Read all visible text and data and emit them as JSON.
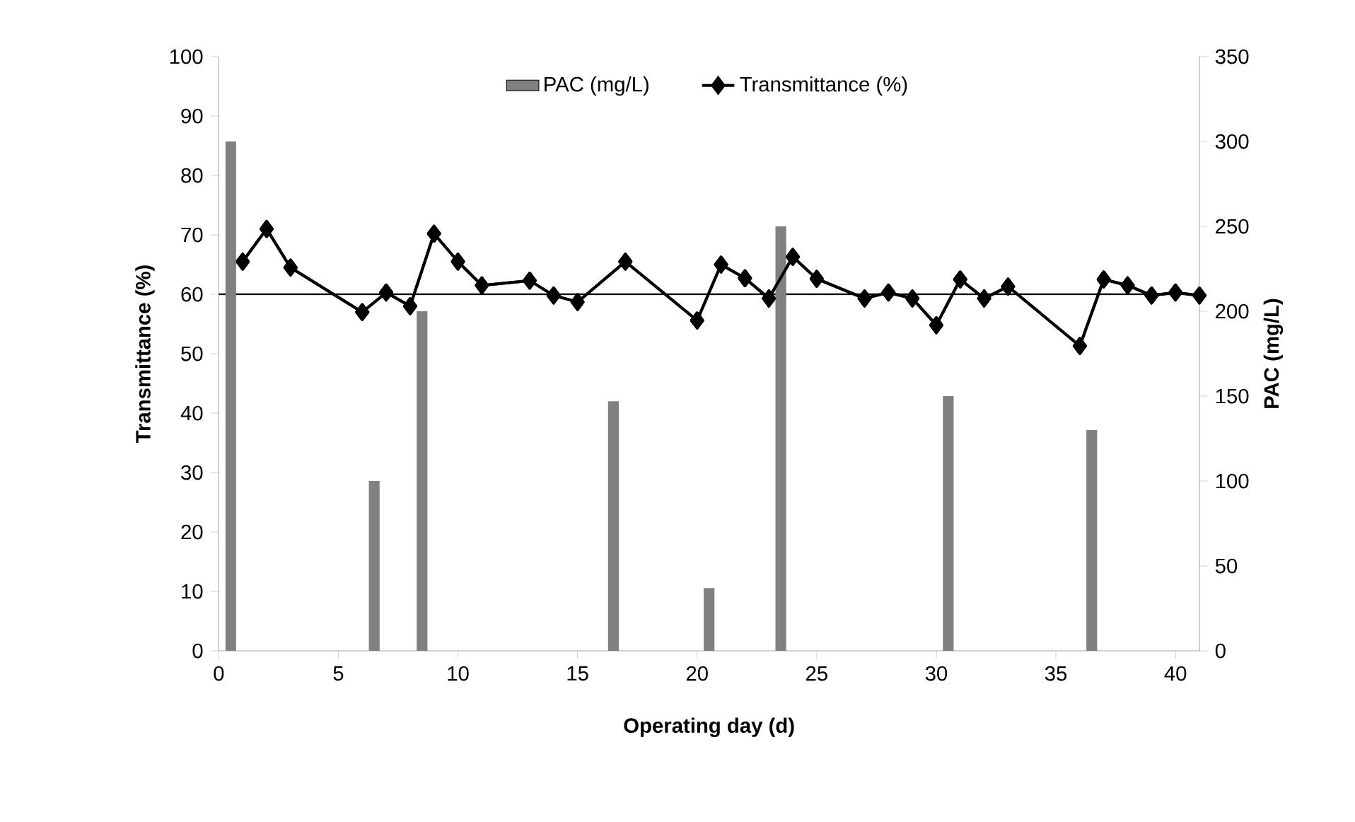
{
  "chart_data": {
    "type": "line",
    "xlabel": "Operating day (d)",
    "ylabel": "Transmittance (%)",
    "y2label": "PAC (mg/L)",
    "xlim": [
      0,
      41
    ],
    "xticks": [
      0,
      5,
      10,
      15,
      20,
      25,
      30,
      35,
      40
    ],
    "ylim": [
      0,
      100
    ],
    "yticks": [
      0,
      10,
      20,
      30,
      40,
      50,
      60,
      70,
      80,
      90,
      100
    ],
    "y2lim": [
      0,
      350
    ],
    "y2ticks": [
      0,
      50,
      100,
      150,
      200,
      250,
      300,
      350
    ],
    "legend": "top",
    "grid": false,
    "ref_lines": [
      {
        "axis": "y",
        "value": 60,
        "color": "#000000"
      }
    ],
    "series": [
      {
        "name": "PAC (mg/L)",
        "type": "bar",
        "axis": "y2",
        "color": "#808080",
        "x": [
          0.5,
          6.5,
          8.5,
          16.5,
          20.5,
          23.5,
          30.5,
          36.5
        ],
        "values": [
          300,
          100,
          200,
          147,
          37,
          250,
          150,
          130
        ]
      },
      {
        "name": "Transmittance (%)",
        "type": "line",
        "color": "#000000",
        "marker": "diamond",
        "line_style": "solid",
        "x": [
          1,
          2,
          3,
          6,
          7,
          8,
          9,
          10,
          11,
          13,
          14,
          15,
          17,
          20,
          21,
          22,
          23,
          24,
          25,
          27,
          28,
          29,
          30,
          31,
          32,
          33,
          36,
          37,
          38,
          39,
          40,
          41
        ],
        "values": [
          65.5,
          71,
          64.5,
          57,
          60.3,
          58,
          70.2,
          65.5,
          61.5,
          62.3,
          59.8,
          58.7,
          65.5,
          55.6,
          65,
          62.7,
          59.3,
          66.3,
          62.6,
          59.3,
          60.3,
          59.3,
          54.8,
          62.5,
          59.3,
          61.3,
          51.3,
          62.5,
          61.5,
          59.8,
          60.3,
          59.8
        ]
      }
    ]
  }
}
